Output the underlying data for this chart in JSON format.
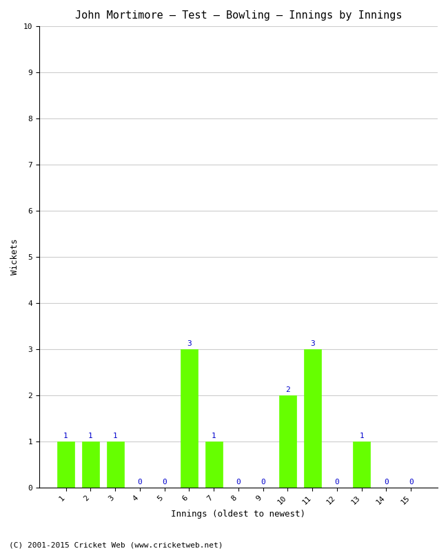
{
  "title": "John Mortimore – Test – Bowling – Innings by Innings",
  "xlabel": "Innings (oldest to newest)",
  "ylabel": "Wickets",
  "categories": [
    1,
    2,
    3,
    4,
    5,
    6,
    7,
    8,
    9,
    10,
    11,
    12,
    13,
    14,
    15
  ],
  "values": [
    1,
    1,
    1,
    0,
    0,
    3,
    1,
    0,
    0,
    2,
    3,
    0,
    1,
    0,
    0
  ],
  "bar_color": "#66ff00",
  "bar_edge_color": "#66ff00",
  "label_color": "#0000cc",
  "ylim": [
    0,
    10
  ],
  "yticks": [
    0,
    1,
    2,
    3,
    4,
    5,
    6,
    7,
    8,
    9,
    10
  ],
  "background_color": "#ffffff",
  "plot_bg_color": "#ffffff",
  "grid_color": "#cccccc",
  "title_fontsize": 11,
  "axis_label_fontsize": 9,
  "tick_fontsize": 8,
  "bar_label_fontsize": 8,
  "footer_text": "(C) 2001-2015 Cricket Web (www.cricketweb.net)",
  "footer_fontsize": 8
}
